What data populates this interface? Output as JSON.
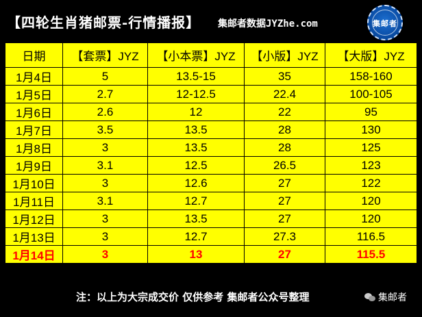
{
  "header": {
    "title": "【四轮生肖猪邮票-行情播报】",
    "source": "集邮者数据JYZhe.com",
    "logo_text": "集邮者"
  },
  "table": {
    "columns": [
      "日期",
      "【套票】JYZ",
      "【小本票】JYZ",
      "【小版】JYZ",
      "【大版】JYZ"
    ],
    "rows": [
      [
        "1月4日",
        "5",
        "13.5-15",
        "35",
        "158-160"
      ],
      [
        "1月5日",
        "2.7",
        "12-12.5",
        "22.4",
        "100-105"
      ],
      [
        "1月6日",
        "2.6",
        "12",
        "22",
        "95"
      ],
      [
        "1月7日",
        "3.5",
        "13.5",
        "28",
        "130"
      ],
      [
        "1月8日",
        "3",
        "13.5",
        "28",
        "125"
      ],
      [
        "1月9日",
        "3.1",
        "12.5",
        "26.5",
        "123"
      ],
      [
        "1月10日",
        "3",
        "12.6",
        "27",
        "122"
      ],
      [
        "1月11日",
        "3.1",
        "12.7",
        "27",
        "120"
      ],
      [
        "1月12日",
        "3",
        "13.5",
        "27",
        "120"
      ],
      [
        "1月13日",
        "3",
        "12.7",
        "27.3",
        "116.5"
      ],
      [
        "1月14日",
        "3",
        "13",
        "27",
        "115.5"
      ]
    ],
    "highlight_row": 10,
    "highlight_color": "#ff0000",
    "background_color": "#ffff00"
  },
  "footer": {
    "note": "注：以上为大宗成交价 仅供参考 集邮者公众号整理",
    "wechat_label": "集邮者",
    "wechat_icon": "wechat-icon"
  }
}
